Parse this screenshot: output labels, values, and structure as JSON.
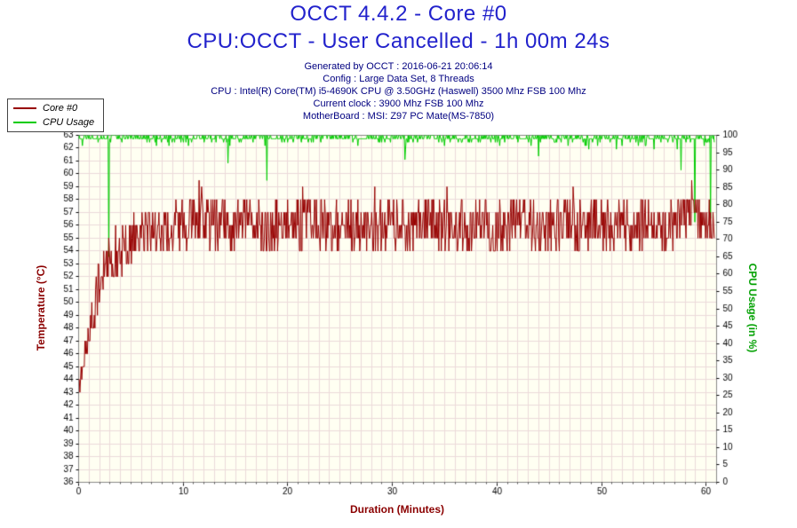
{
  "chart_data": {
    "type": "line",
    "title": "OCCT 4.4.2 - Core #0",
    "subtitle": "CPU:OCCT - User Cancelled - 1h 00m 24s",
    "annotations": [
      "Generated by OCCT : 2016-06-21 20:06:14",
      "Config : Large Data Set, 8 Threads",
      "CPU : Intel(R) Core(TM) i5-4690K CPU @ 3.50GHz (Haswell) 3500 Mhz FSB 100 Mhz",
      "Current clock : 3900 Mhz FSB 100 Mhz",
      "MotherBoard : MSI: Z97 PC Mate(MS-7850)"
    ],
    "title_color": "#2222cc",
    "annotation_color": "#000080",
    "plot_background": "#fffff2",
    "grid_color": "#ecdada",
    "legend_position": "top-left",
    "x_axis": {
      "label": "Duration (Minutes)",
      "min": 0,
      "max": 61,
      "major_ticks": [
        0,
        10,
        20,
        30,
        40,
        50,
        60
      ],
      "grid_step": 1
    },
    "y_axis_left": {
      "label": "Temperature (°C)",
      "min": 36,
      "max": 63,
      "tick_step": 1,
      "grid_step": 1,
      "color": "#8b0000"
    },
    "y_axis_right": {
      "label": "CPU Usage (in %)",
      "min": 0,
      "max": 100,
      "tick_step": 5,
      "color": "#00a000"
    },
    "series": [
      {
        "name": "Core #0",
        "axis": "left",
        "color": "#970000",
        "x_start": 0,
        "x_step": 1,
        "values": [
          43.5,
          47.5,
          51.5,
          53.5,
          54,
          55,
          55.8,
          55.5,
          56,
          55.6,
          56,
          56.5,
          56.8,
          55.8,
          56.2,
          55.6,
          56,
          56.4,
          55.6,
          56,
          56.4,
          55.8,
          56.2,
          56.5,
          55.6,
          56,
          56.4,
          55.6,
          56.2,
          55.6,
          56,
          56.4,
          55.6,
          56.2,
          56.4,
          55.8,
          56,
          55.6,
          56.2,
          56.4,
          55.6,
          56,
          56.4,
          55.8,
          56,
          55.6,
          56.2,
          56.4,
          55.6,
          56,
          56.4,
          55.8,
          56,
          55.6,
          56,
          56.2,
          55.8,
          56,
          57,
          56.5,
          56
        ],
        "noise_amplitude": 2.0,
        "quantize": 1,
        "spikes": [
          [
            11.5,
            59.5
          ],
          [
            21.4,
            59
          ],
          [
            28.3,
            59
          ],
          [
            35.2,
            59
          ],
          [
            47.3,
            59
          ],
          [
            58.6,
            59.5
          ]
        ]
      },
      {
        "name": "CPU Usage",
        "axis": "right",
        "color": "#00cc00",
        "x_start": 0,
        "x_step": 60,
        "values": [
          99.3,
          99.3
        ],
        "noise_amplitude": 0.9,
        "neg_noise": 3,
        "quantize": 1,
        "clip_max": 100,
        "spikes": [
          [
            2.9,
            65
          ],
          [
            14.3,
            92
          ],
          [
            18.0,
            87
          ],
          [
            31.2,
            93
          ],
          [
            44.0,
            94
          ],
          [
            57.6,
            90
          ],
          [
            58.9,
            75
          ],
          [
            60.4,
            76
          ]
        ]
      }
    ]
  }
}
